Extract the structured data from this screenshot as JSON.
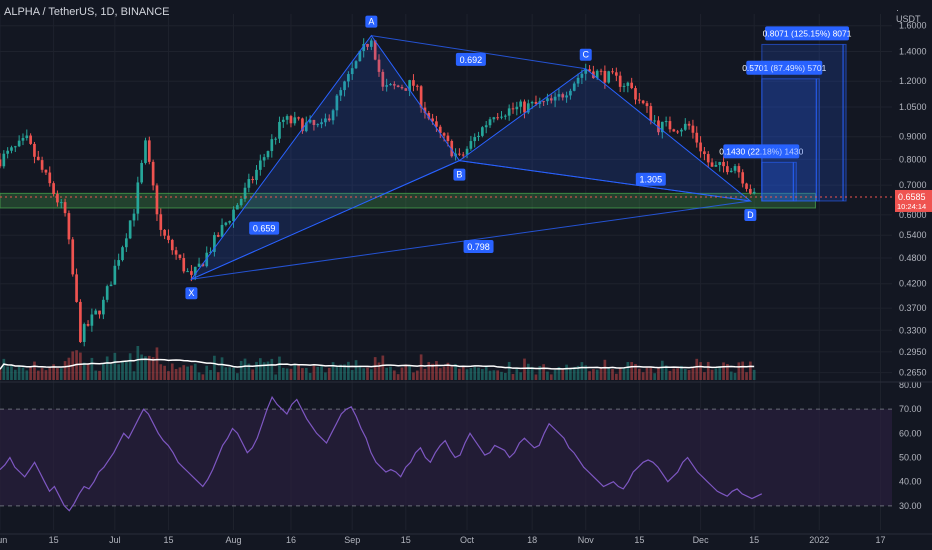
{
  "header": {
    "title": "ALPHA / TetherUS, 1D, BINANCE",
    "currency_top": "·",
    "currency": "USDT"
  },
  "colors": {
    "background": "#131722",
    "bull": "#26a69a",
    "bear": "#ef5350",
    "pattern": "#2962ff",
    "zone": "#4caf50",
    "rsi": "#7e57c2",
    "rsi_band": "#2a1f3d",
    "grid": "#1e222d",
    "axis_text": "#b2b5be",
    "volume_ma": "#ffffff",
    "price_line": "#ef5350"
  },
  "chart_data": [
    {
      "type": "candlestick",
      "title": "ALPHA / TetherUS, 1D, BINANCE",
      "y_scale": "log",
      "ylim": [
        0.255,
        1.7
      ],
      "y_ticks": [
        "1.6000",
        "1.4000",
        "1.2000",
        "1.0500",
        "0.9000",
        "0.8000",
        "0.7000",
        "0.6000",
        "0.5400",
        "0.4800",
        "0.4200",
        "0.3700",
        "0.3300",
        "0.2950",
        "0.2650"
      ],
      "x_ticks": [
        "Jun",
        "15",
        "Jul",
        "15",
        "Aug",
        "16",
        "Sep",
        "15",
        "Oct",
        "18",
        "Nov",
        "15",
        "Dec",
        "15",
        "2022",
        "17"
      ],
      "x_range": [
        "2021-06-01",
        "2022-01-20"
      ],
      "last_price": {
        "value": "0.6585",
        "countdown": "10:24:14"
      },
      "harmonic_pattern": {
        "points": [
          {
            "label": "X",
            "date": "2021-07-21",
            "price": 0.43
          },
          {
            "label": "A",
            "date": "2021-09-06",
            "price": 1.52
          },
          {
            "label": "B",
            "date": "2021-09-29",
            "price": 0.795
          },
          {
            "label": "C",
            "date": "2021-11-01",
            "price": 1.28
          },
          {
            "label": "D",
            "date": "2021-12-14",
            "price": 0.645
          }
        ],
        "ratios": [
          {
            "label": "0.692",
            "date": "2021-10-02",
            "price": 1.34
          },
          {
            "label": "0.659",
            "date": "2021-08-09",
            "price": 0.559
          },
          {
            "label": "1.305",
            "date": "2021-11-18",
            "price": 0.72
          },
          {
            "label": "0.798",
            "date": "2021-10-04",
            "price": 0.508
          }
        ]
      },
      "targets": [
        {
          "label": "0.1430 (22.18%) 1430",
          "start": "2021-12-17",
          "end": "2021-12-26",
          "low": 0.645,
          "high": 0.788
        },
        {
          "label": "0.5701 (87.49%) 5701",
          "start": "2021-12-17",
          "end": "2022-01-01",
          "low": 0.645,
          "high": 1.215
        },
        {
          "label": "0.8071 (125.15%) 8071",
          "start": "2021-12-17",
          "end": "2022-01-08",
          "low": 0.645,
          "high": 1.452
        }
      ],
      "support_zone": {
        "low": 0.622,
        "high": 0.671
      }
    },
    {
      "type": "volume",
      "moving_average": true
    },
    {
      "type": "line",
      "name": "RSI",
      "ylim": [
        20,
        80
      ],
      "y_ticks": [
        "80.00",
        "70.00",
        "60.00",
        "50.00",
        "40.00",
        "30.00"
      ],
      "bands": [
        30,
        70
      ],
      "values": [
        45,
        47,
        50,
        46,
        44,
        42,
        45,
        48,
        44,
        40,
        36,
        38,
        34,
        30,
        28,
        31,
        35,
        38,
        37,
        40,
        44,
        46,
        49,
        52,
        56,
        60,
        58,
        62,
        66,
        70,
        68,
        64,
        60,
        57,
        55,
        52,
        48,
        46,
        44,
        42,
        40,
        38,
        41,
        45,
        50,
        55,
        58,
        62,
        60,
        56,
        52,
        54,
        58,
        64,
        70,
        75,
        72,
        70,
        68,
        72,
        74,
        70,
        66,
        63,
        60,
        58,
        56,
        60,
        64,
        68,
        70,
        71,
        67,
        62,
        58,
        52,
        48,
        46,
        44,
        45,
        44,
        42,
        46,
        48,
        52,
        54,
        50,
        48,
        52,
        55,
        57,
        53,
        50,
        51,
        56,
        60,
        57,
        54,
        51,
        52,
        55,
        54,
        53,
        50,
        52,
        56,
        58,
        56,
        54,
        55,
        60,
        64,
        62,
        60,
        58,
        54,
        52,
        49,
        46,
        44,
        42,
        40,
        38,
        39,
        40,
        38,
        37,
        40,
        44,
        46,
        48,
        49,
        48,
        46,
        43,
        40,
        42,
        44,
        48,
        50,
        47,
        44,
        42,
        40,
        38,
        36,
        35,
        34,
        36,
        37,
        35,
        34,
        33,
        34,
        35
      ]
    }
  ]
}
